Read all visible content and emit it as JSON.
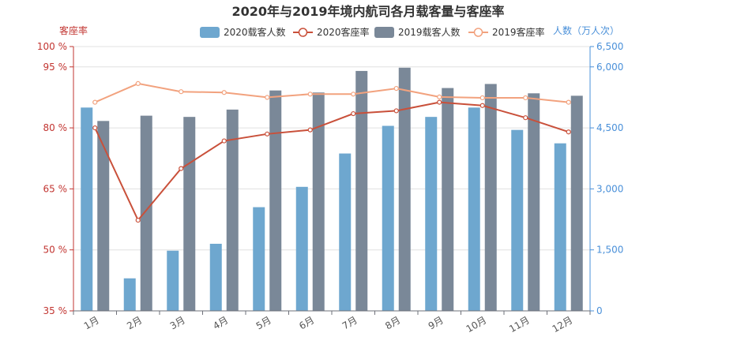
{
  "chart_data": {
    "type": "bar",
    "title": "2020年与2019年境内航司各月载客量与客座率",
    "left_axis": {
      "name": "客座率",
      "range": [
        35,
        100
      ],
      "ticks": [
        100,
        95,
        80,
        65,
        50,
        35
      ],
      "tick_labels": [
        "100 %",
        "95 %",
        "80 %",
        "65 %",
        "50 %",
        "35 %"
      ],
      "color": "#c23531"
    },
    "right_axis": {
      "name": "人数（万人次）",
      "range": [
        0,
        6500
      ],
      "ticks": [
        6500,
        6000,
        4500,
        3000,
        1500,
        0
      ],
      "tick_labels": [
        "6,500",
        "6,000",
        "4,500",
        "3,000",
        "1,500",
        "0"
      ],
      "color": "#4a90d9"
    },
    "categories": [
      "1月",
      "2月",
      "3月",
      "4月",
      "5月",
      "6月",
      "7月",
      "8月",
      "9月",
      "10月",
      "11月",
      "12月"
    ],
    "series": [
      {
        "name": "2020载客人数",
        "kind": "bar",
        "axis": "right",
        "color": "#6ea7cf",
        "values": [
          5000,
          800,
          1480,
          1650,
          2550,
          3050,
          3870,
          4550,
          4770,
          5000,
          4450,
          4120
        ]
      },
      {
        "name": "2020客座率",
        "kind": "line",
        "axis": "left",
        "color": "#c9503a",
        "values": [
          80.0,
          57.3,
          70.0,
          76.8,
          78.5,
          79.5,
          83.5,
          84.2,
          86.3,
          85.5,
          82.5,
          79.0
        ]
      },
      {
        "name": "2019载客人数",
        "kind": "bar",
        "axis": "right",
        "color": "#7a8898",
        "values": [
          4670,
          4800,
          4770,
          4950,
          5420,
          5370,
          5900,
          5980,
          5480,
          5580,
          5350,
          5290
        ]
      },
      {
        "name": "2019客座率",
        "kind": "line",
        "axis": "left",
        "color": "#f2a27e",
        "values": [
          86.3,
          90.9,
          88.9,
          88.7,
          87.5,
          88.3,
          88.3,
          89.7,
          87.6,
          87.4,
          87.4,
          86.3
        ]
      }
    ],
    "grid": true,
    "legend_position": "top-center"
  }
}
